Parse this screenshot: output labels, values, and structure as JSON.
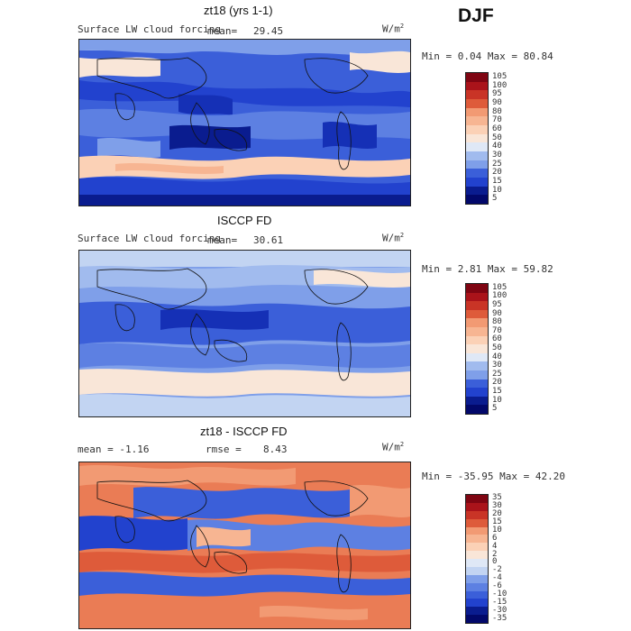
{
  "season": "DJF",
  "colors": {
    "pos": [
      "#f9e6d8",
      "#fbd1b6",
      "#f7b592",
      "#f29a73",
      "#ea7c55",
      "#de5b3a",
      "#c93426",
      "#aa131a",
      "#7f0512"
    ],
    "neg": [
      "#dfe8f6",
      "#c2d4f2",
      "#a1bbee",
      "#7f9fe9",
      "#5d80e2",
      "#3b5fd9",
      "#2242ce",
      "#1530b6",
      "#0a1c8f",
      "#02086a"
    ],
    "mid": "#ffffff"
  },
  "panels": [
    {
      "title": "zt18 (yrs 1-1)",
      "subtitle": "Surface LW cloud forcing",
      "mean_label": "mean=",
      "mean_value": "29.45",
      "unit": "W/m",
      "unit_sup": "2",
      "minmax": "Min =    0.04 Max =   80.84",
      "colorbar": [
        "105",
        "100",
        "95",
        "90",
        "80",
        "70",
        "60",
        "50",
        "40",
        "30",
        "25",
        "20",
        "15",
        "10",
        "5"
      ]
    },
    {
      "title": "ISCCP FD",
      "subtitle": "Surface LW cloud forcing",
      "mean_label": "mean=",
      "mean_value": "30.61",
      "unit": "W/m",
      "unit_sup": "2",
      "minmax": "Min =    2.81 Max =   59.82",
      "colorbar": [
        "105",
        "100",
        "95",
        "90",
        "80",
        "70",
        "60",
        "50",
        "40",
        "30",
        "25",
        "20",
        "15",
        "10",
        "5"
      ]
    },
    {
      "title": "zt18 - ISCCP FD",
      "subtitle": "mean =   -1.16",
      "mean_label": "rmse =",
      "mean_value": "8.43",
      "unit": "W/m",
      "unit_sup": "2",
      "minmax": "Min = -35.95 Max =   42.20",
      "colorbar": [
        "35",
        "30",
        "20",
        "15",
        "10",
        "6",
        "4",
        "2",
        "0",
        "-2",
        "-4",
        "-6",
        "-10",
        "-15",
        "-30",
        "-35"
      ]
    }
  ]
}
